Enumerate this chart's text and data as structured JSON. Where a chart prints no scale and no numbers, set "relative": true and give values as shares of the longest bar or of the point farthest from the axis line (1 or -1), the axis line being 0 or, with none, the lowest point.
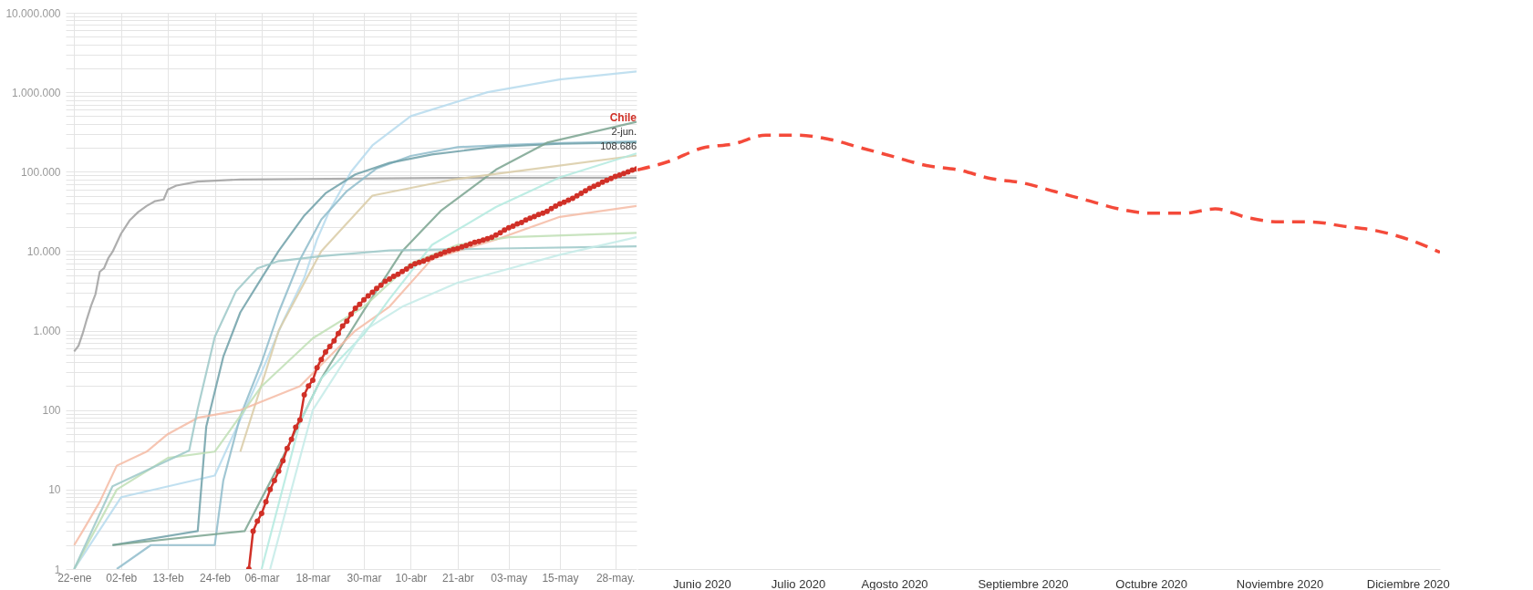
{
  "chart_data": [
    {
      "type": "line",
      "log": true,
      "grid": true,
      "xlim": [
        "2020-01-20",
        "2020-06-02"
      ],
      "xticks": [
        {
          "value": "2020-01-22",
          "label": "22-ene"
        },
        {
          "value": "2020-02-02",
          "label": "02-feb"
        },
        {
          "value": "2020-02-13",
          "label": "13-feb"
        },
        {
          "value": "2020-02-24",
          "label": "24-feb"
        },
        {
          "value": "2020-03-06",
          "label": "06-mar"
        },
        {
          "value": "2020-03-18",
          "label": "18-mar"
        },
        {
          "value": "2020-03-30",
          "label": "30-mar"
        },
        {
          "value": "2020-04-10",
          "label": "10-abr"
        },
        {
          "value": "2020-04-21",
          "label": "21-abr"
        },
        {
          "value": "2020-05-03",
          "label": "03-may"
        },
        {
          "value": "2020-05-15",
          "label": "15-may"
        },
        {
          "value": "2020-05-28",
          "label": "28-may."
        }
      ],
      "ylim": [
        1,
        10000000
      ],
      "yticks": [
        1,
        {
          "value": 2,
          "label": null
        },
        {
          "value": 3,
          "label": null
        },
        {
          "value": 4,
          "label": null
        },
        {
          "value": 5,
          "label": null
        },
        {
          "value": 6,
          "label": null
        },
        {
          "value": 7,
          "label": null
        },
        {
          "value": 8,
          "label": null
        },
        {
          "value": 9,
          "label": null
        },
        10,
        {
          "value": 20,
          "label": null
        },
        {
          "value": 30,
          "label": null
        },
        {
          "value": 40,
          "label": null
        },
        {
          "value": 50,
          "label": null
        },
        {
          "value": 60,
          "label": null
        },
        {
          "value": 70,
          "label": null
        },
        {
          "value": 80,
          "label": null
        },
        {
          "value": 90,
          "label": null
        },
        100,
        {
          "value": 200,
          "label": null
        },
        {
          "value": 300,
          "label": null
        },
        {
          "value": 400,
          "label": null
        },
        {
          "value": 500,
          "label": null
        },
        {
          "value": 600,
          "label": null
        },
        {
          "value": 700,
          "label": null
        },
        {
          "value": 800,
          "label": null
        },
        {
          "value": 900,
          "label": null
        },
        {
          "value": 1000,
          "label": "1.000"
        },
        {
          "value": 2000,
          "label": null
        },
        {
          "value": 3000,
          "label": null
        },
        {
          "value": 4000,
          "label": null
        },
        {
          "value": 5000,
          "label": null
        },
        {
          "value": 6000,
          "label": null
        },
        {
          "value": 7000,
          "label": null
        },
        {
          "value": 8000,
          "label": null
        },
        {
          "value": 9000,
          "label": null
        },
        {
          "value": 10000,
          "label": "10.000"
        },
        {
          "value": 20000,
          "label": null
        },
        {
          "value": 30000,
          "label": null
        },
        {
          "value": 40000,
          "label": null
        },
        {
          "value": 50000,
          "label": null
        },
        {
          "value": 60000,
          "label": null
        },
        {
          "value": 70000,
          "label": null
        },
        {
          "value": 80000,
          "label": null
        },
        {
          "value": 90000,
          "label": null
        },
        {
          "value": 100000,
          "label": "100.000"
        },
        {
          "value": 200000,
          "label": null
        },
        {
          "value": 300000,
          "label": null
        },
        {
          "value": 400000,
          "label": null
        },
        {
          "value": 500000,
          "label": null
        },
        {
          "value": 600000,
          "label": null
        },
        {
          "value": 700000,
          "label": null
        },
        {
          "value": 800000,
          "label": null
        },
        {
          "value": 900000,
          "label": null
        },
        {
          "value": 1000000,
          "label": "1.000.000"
        },
        {
          "value": 2000000,
          "label": null
        },
        {
          "value": 3000000,
          "label": null
        },
        {
          "value": 4000000,
          "label": null
        },
        {
          "value": 5000000,
          "label": null
        },
        {
          "value": 6000000,
          "label": null
        },
        {
          "value": 7000000,
          "label": null
        },
        {
          "value": 8000000,
          "label": null
        },
        {
          "value": 9000000,
          "label": null
        },
        {
          "value": 10000000,
          "label": "10.000.000"
        }
      ],
      "series": [
        {
          "color": "#a0a0a0",
          "x": [
            "2020-01-22",
            "2020-01-23",
            "2020-01-24",
            "2020-01-25",
            "2020-01-26",
            "2020-01-27",
            "2020-01-28",
            "2020-01-29",
            "2020-01-30",
            "2020-01-31",
            "2020-02-02",
            "2020-02-04",
            "2020-02-06",
            "2020-02-08",
            "2020-02-10",
            "2020-02-12",
            "2020-02-13",
            "2020-02-15",
            "2020-02-20",
            "2020-03-01",
            "2020-03-15",
            "2020-04-17",
            "2020-06-02"
          ],
          "values": [
            548,
            643,
            920,
            1410,
            2080,
            2880,
            5510,
            6090,
            8140,
            9800,
            16600,
            24300,
            31000,
            37000,
            42600,
            44700,
            59900,
            66900,
            75000,
            79900,
            81000,
            83400,
            84000
          ]
        },
        {
          "color": "#b6dbed",
          "x": [
            "2020-01-22",
            "2020-02-02",
            "2020-02-24",
            "2020-03-02",
            "2020-03-06",
            "2020-03-11",
            "2020-03-16",
            "2020-03-19",
            "2020-03-22",
            "2020-03-27",
            "2020-04-01",
            "2020-04-10",
            "2020-04-28",
            "2020-05-15",
            "2020-06-02"
          ],
          "values": [
            1,
            8,
            15,
            100,
            300,
            1300,
            4600,
            14000,
            33000,
            100000,
            214000,
            500000,
            1000000,
            1450000,
            1830000
          ]
        },
        {
          "color": "#8fbccb",
          "x": [
            "2020-02-01",
            "2020-02-09",
            "2020-02-24",
            "2020-02-26",
            "2020-03-01",
            "2020-03-06",
            "2020-03-10",
            "2020-03-15",
            "2020-03-20",
            "2020-03-26",
            "2020-04-02",
            "2020-04-10",
            "2020-04-21",
            "2020-05-03",
            "2020-05-15",
            "2020-06-02"
          ],
          "values": [
            1,
            2,
            2,
            13,
            84,
            400,
            1700,
            7800,
            25000,
            57000,
            110000,
            158000,
            204000,
            218000,
            230000,
            240000
          ]
        },
        {
          "color": "#6fa0a8",
          "x": [
            "2020-01-31",
            "2020-02-20",
            "2020-02-22",
            "2020-02-26",
            "2020-03-01",
            "2020-03-06",
            "2020-03-10",
            "2020-03-16",
            "2020-03-21",
            "2020-03-28",
            "2020-04-05",
            "2020-04-15",
            "2020-04-30",
            "2020-05-15",
            "2020-06-02"
          ],
          "values": [
            2,
            3,
            62,
            470,
            1700,
            4600,
            10100,
            28000,
            53600,
            92500,
            129000,
            165000,
            206000,
            224000,
            233000
          ]
        },
        {
          "color": "#7aa38f",
          "x": [
            "2020-01-31",
            "2020-03-02",
            "2020-03-10",
            "2020-03-20",
            "2020-03-30",
            "2020-04-08",
            "2020-04-17",
            "2020-04-30",
            "2020-05-12",
            "2020-06-02"
          ],
          "values": [
            2,
            3,
            20,
            250,
            1800,
            10000,
            32000,
            106000,
            232000,
            424000
          ]
        },
        {
          "color": "#d9cba6",
          "x": [
            "2020-03-01",
            "2020-03-10",
            "2020-03-20",
            "2020-04-01",
            "2020-04-20",
            "2020-05-10",
            "2020-06-02"
          ],
          "values": [
            30,
            1000,
            10000,
            50000,
            80000,
            110000,
            160000
          ]
        },
        {
          "color": "#f4bba5",
          "x": [
            "2020-01-22",
            "2020-01-24",
            "2020-01-28",
            "2020-02-01",
            "2020-02-08",
            "2020-02-13",
            "2020-02-20",
            "2020-03-01",
            "2020-03-15",
            "2020-03-28",
            "2020-04-05",
            "2020-04-15",
            "2020-04-30",
            "2020-05-15",
            "2020-06-02"
          ],
          "values": [
            2,
            3,
            7,
            20,
            30,
            50,
            80,
            100,
            200,
            1000,
            2000,
            8000,
            14000,
            27000,
            37000
          ]
        },
        {
          "color": "#c0dfb5",
          "x": [
            "2020-01-22",
            "2020-02-01",
            "2020-02-13",
            "2020-02-24",
            "2020-03-06",
            "2020-03-18",
            "2020-03-30",
            "2020-04-10",
            "2020-04-21",
            "2020-05-03",
            "2020-06-02"
          ],
          "values": [
            1,
            10,
            25,
            30,
            200,
            800,
            2000,
            7000,
            12000,
            15000,
            17000
          ]
        },
        {
          "color": "#9cc8c8",
          "x": [
            "2020-01-22",
            "2020-01-31",
            "2020-02-18",
            "2020-02-20",
            "2020-02-24",
            "2020-02-29",
            "2020-03-05",
            "2020-03-10",
            "2020-03-20",
            "2020-04-05",
            "2020-05-01",
            "2020-06-02"
          ],
          "values": [
            1,
            11,
            31,
            104,
            833,
            3150,
            6090,
            7500,
            8650,
            10200,
            10800,
            11500
          ]
        },
        {
          "color": "#b3eadf",
          "x": [
            "2020-03-06",
            "2020-03-15",
            "2020-03-20",
            "2020-03-30",
            "2020-04-05",
            "2020-04-15",
            "2020-04-30",
            "2020-05-15",
            "2020-06-02"
          ],
          "values": [
            1,
            70,
            250,
            900,
            2500,
            12000,
            36000,
            85000,
            170000
          ]
        },
        {
          "color": "#c4ebe8",
          "x": [
            "2020-03-08",
            "2020-03-18",
            "2020-03-30",
            "2020-04-08",
            "2020-04-21",
            "2020-05-03",
            "2020-05-15",
            "2020-06-02"
          ],
          "values": [
            1,
            100,
            1000,
            2000,
            4000,
            6000,
            9000,
            15000
          ]
        },
        {
          "name": "Chile",
          "color": "#d03027",
          "marker": "circle",
          "x": [
            "2020-03-03",
            "2020-03-04",
            "2020-03-05",
            "2020-03-06",
            "2020-03-07",
            "2020-03-08",
            "2020-03-09",
            "2020-03-10",
            "2020-03-11",
            "2020-03-12",
            "2020-03-13",
            "2020-03-14",
            "2020-03-15",
            "2020-03-16",
            "2020-03-17",
            "2020-03-18",
            "2020-03-19",
            "2020-03-20",
            "2020-03-21",
            "2020-03-22",
            "2020-03-23",
            "2020-03-24",
            "2020-03-25",
            "2020-03-26",
            "2020-03-27",
            "2020-03-28",
            "2020-03-29",
            "2020-03-30",
            "2020-03-31",
            "2020-04-01",
            "2020-04-02",
            "2020-04-03",
            "2020-04-04",
            "2020-04-05",
            "2020-04-06",
            "2020-04-07",
            "2020-04-08",
            "2020-04-09",
            "2020-04-10",
            "2020-04-11",
            "2020-04-12",
            "2020-04-13",
            "2020-04-14",
            "2020-04-15",
            "2020-04-16",
            "2020-04-17",
            "2020-04-18",
            "2020-04-19",
            "2020-04-20",
            "2020-04-21",
            "2020-04-22",
            "2020-04-23",
            "2020-04-24",
            "2020-04-25",
            "2020-04-26",
            "2020-04-27",
            "2020-04-28",
            "2020-04-29",
            "2020-04-30",
            "2020-05-01",
            "2020-05-02",
            "2020-05-03",
            "2020-05-04",
            "2020-05-05",
            "2020-05-06",
            "2020-05-07",
            "2020-05-08",
            "2020-05-09",
            "2020-05-10",
            "2020-05-11",
            "2020-05-12",
            "2020-05-13",
            "2020-05-14",
            "2020-05-15",
            "2020-05-16",
            "2020-05-17",
            "2020-05-18",
            "2020-05-19",
            "2020-05-20",
            "2020-05-21",
            "2020-05-22",
            "2020-05-23",
            "2020-05-24",
            "2020-05-25",
            "2020-05-26",
            "2020-05-27",
            "2020-05-28",
            "2020-05-29",
            "2020-05-30",
            "2020-05-31",
            "2020-06-01",
            "2020-06-02"
          ],
          "values": [
            1,
            3,
            4,
            5,
            7,
            10,
            13,
            17,
            23,
            33,
            43,
            61,
            75,
            156,
            201,
            238,
            342,
            434,
            537,
            632,
            746,
            922,
            1140,
            1310,
            1610,
            1910,
            2140,
            2450,
            2740,
            3030,
            3400,
            3740,
            4160,
            4470,
            4820,
            5120,
            5550,
            5970,
            6500,
            6930,
            7210,
            7530,
            7920,
            8270,
            8810,
            9250,
            9730,
            10100,
            10500,
            10800,
            11300,
            11800,
            12300,
            12900,
            13300,
            13800,
            14400,
            14900,
            16000,
            17000,
            18400,
            19700,
            20600,
            22000,
            23000,
            24600,
            26000,
            27200,
            28900,
            30100,
            31700,
            34400,
            37000,
            39500,
            41400,
            43800,
            46100,
            49600,
            53600,
            57600,
            61900,
            65400,
            69100,
            74000,
            78000,
            82300,
            86900,
            90600,
            94900,
            99700,
            105000,
            108686
          ]
        }
      ],
      "annotations": [
        "2-jun.",
        "108.686"
      ]
    },
    {
      "type": "line",
      "relative": true,
      "grid": false,
      "categories": [
        null,
        null,
        "Junio 2020",
        null,
        null,
        "Julio 2020",
        null,
        null,
        "Agosto 2020",
        null,
        null,
        null,
        "Septiembre 2020",
        null,
        null,
        null,
        "Octubre  2020",
        null,
        null,
        null,
        "Noviembre  2020",
        null,
        null,
        null,
        "Diciembre  2020",
        null
      ],
      "series": [
        {
          "color": "#f44a3a",
          "line_style": "dashed",
          "values": [
            0.92,
            0.94,
            0.97,
            0.98,
            1.0,
            1.0,
            0.99,
            0.97,
            0.95,
            0.93,
            0.92,
            0.9,
            0.89,
            0.87,
            0.85,
            0.83,
            0.82,
            0.82,
            0.83,
            0.81,
            0.8,
            0.8,
            0.79,
            0.78,
            0.76,
            0.73
          ]
        }
      ]
    }
  ]
}
